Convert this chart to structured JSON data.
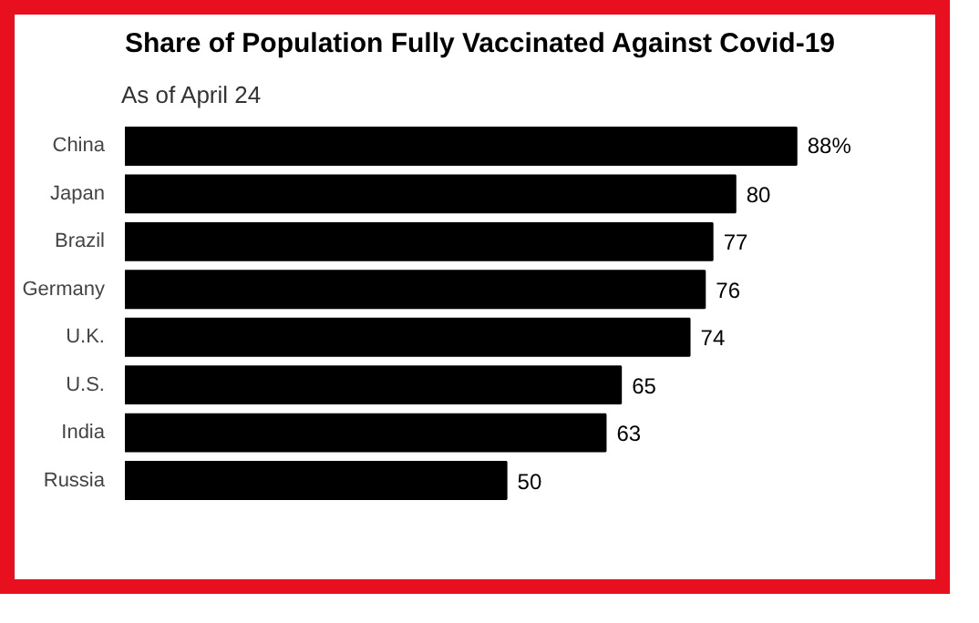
{
  "chart_data": {
    "type": "bar",
    "orientation": "horizontal",
    "title": "Share of Population Fully Vaccinated Against Covid-19",
    "subtitle": "As of April 24",
    "categories": [
      "China",
      "Japan",
      "Brazil",
      "Germany",
      "U.K.",
      "U.S.",
      "India",
      "Russia"
    ],
    "values": [
      88,
      80,
      77,
      76,
      74,
      65,
      63,
      50
    ],
    "value_labels": [
      "88%",
      "80",
      "77",
      "76",
      "74",
      "65",
      "63",
      "50"
    ],
    "color": "#000000",
    "grid": false
  }
}
